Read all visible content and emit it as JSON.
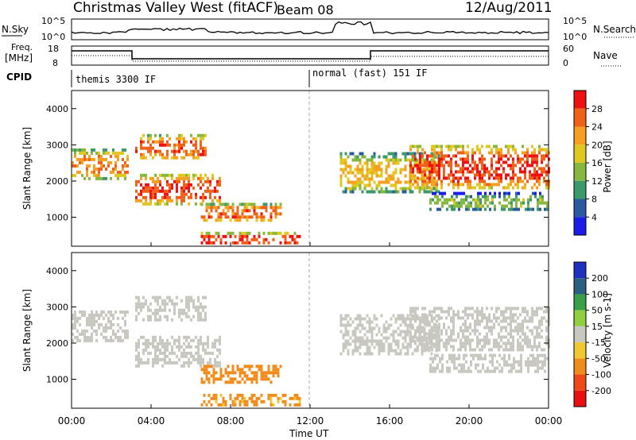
{
  "header": {
    "station": "Christmas Valley West (fitACF)",
    "beam": "Beam 08",
    "date": "12/Aug/2011"
  },
  "small_panels": {
    "nsky_label": "N.Sky",
    "nsky_ticks": [
      "10^5",
      "10^0"
    ],
    "nsearch_label": "N.Search",
    "nsearch_ticks": [
      "10^5",
      "10^0"
    ],
    "freq_label": "Freq.",
    "freq_unit": "[MHz]",
    "freq_ticks": [
      "18",
      "8"
    ],
    "nave_label": "Nave",
    "nave_ticks": [
      "60",
      "0"
    ],
    "cpid_label": "CPID",
    "cpid_left": "themis 3300 IF",
    "cpid_right": "normal (fast) 151 IF"
  },
  "power_colorbar": {
    "label": "Power [dB]",
    "ticks": [
      "28",
      "24",
      "20",
      "16",
      "12",
      "8",
      "4"
    ],
    "colors": [
      "#ee1111",
      "#f06018",
      "#f5a020",
      "#e0c820",
      "#86b840",
      "#3c9a6a",
      "#2a5aa0",
      "#1c1ce8"
    ]
  },
  "velocity_colorbar": {
    "label": "Velocity [m s-1]",
    "ticks": [
      "200",
      "100",
      "50",
      "15",
      "-15",
      "-50",
      "-100",
      "-200"
    ],
    "colors": [
      "#2030c0",
      "#2a6080",
      "#3aa048",
      "#90d040",
      "#c8c8c0",
      "#f0c830",
      "#f08c1c",
      "#f04818",
      "#e81010"
    ]
  },
  "chart_data": [
    {
      "type": "heatmap",
      "title": "Power",
      "xlabel": "",
      "ylabel": "Slant Range [km]",
      "xlim": [
        "00:00",
        "24:00"
      ],
      "ylim": [
        200,
        4500
      ],
      "yticks": [
        "1000",
        "2000",
        "3000",
        "4000"
      ],
      "xticks": [
        "00:00",
        "04:00",
        "08:00",
        "12:00",
        "16:00",
        "20:00",
        "00:00"
      ],
      "series": [
        {
          "x_start": 0.0,
          "x_end": 2.8,
          "y_start": 2100,
          "y_end": 2900,
          "value": 22
        },
        {
          "x_start": 3.2,
          "x_end": 6.8,
          "y_start": 2600,
          "y_end": 3300,
          "value": 24
        },
        {
          "x_start": 3.2,
          "x_end": 7.5,
          "y_start": 1400,
          "y_end": 2200,
          "value": 26
        },
        {
          "x_start": 6.5,
          "x_end": 10.5,
          "y_start": 900,
          "y_end": 1400,
          "value": 24
        },
        {
          "x_start": 6.5,
          "x_end": 11.5,
          "y_start": 250,
          "y_end": 600,
          "value": 26
        },
        {
          "x_start": 13.5,
          "x_end": 18.5,
          "y_start": 1700,
          "y_end": 2800,
          "value": 18
        },
        {
          "x_start": 17.0,
          "x_end": 24.0,
          "y_start": 1800,
          "y_end": 3000,
          "value": 26
        },
        {
          "x_start": 18.0,
          "x_end": 24.0,
          "y_start": 1200,
          "y_end": 1700,
          "value": 12
        }
      ]
    },
    {
      "type": "heatmap",
      "title": "Velocity",
      "xlabel": "Time UT",
      "ylabel": "Slant Range [km]",
      "xlim": [
        "00:00",
        "24:00"
      ],
      "ylim": [
        200,
        4500
      ],
      "yticks": [
        "1000",
        "2000",
        "3000",
        "4000"
      ],
      "xticks": [
        "00:00",
        "04:00",
        "08:00",
        "12:00",
        "16:00",
        "20:00",
        "00:00"
      ],
      "series": [
        {
          "x_start": 0.0,
          "x_end": 2.8,
          "y_start": 2100,
          "y_end": 2900,
          "value": 0
        },
        {
          "x_start": 3.2,
          "x_end": 6.8,
          "y_start": 2600,
          "y_end": 3300,
          "value": 0
        },
        {
          "x_start": 3.2,
          "x_end": 7.5,
          "y_start": 1400,
          "y_end": 2200,
          "value": 0
        },
        {
          "x_start": 6.5,
          "x_end": 10.5,
          "y_start": 900,
          "y_end": 1400,
          "value": -70
        },
        {
          "x_start": 6.5,
          "x_end": 11.5,
          "y_start": 250,
          "y_end": 600,
          "value": -60
        },
        {
          "x_start": 13.5,
          "x_end": 18.5,
          "y_start": 1700,
          "y_end": 2800,
          "value": 0
        },
        {
          "x_start": 17.0,
          "x_end": 24.0,
          "y_start": 1800,
          "y_end": 3000,
          "value": 0
        },
        {
          "x_start": 18.0,
          "x_end": 24.0,
          "y_start": 1200,
          "y_end": 1700,
          "value": 0
        }
      ]
    }
  ]
}
